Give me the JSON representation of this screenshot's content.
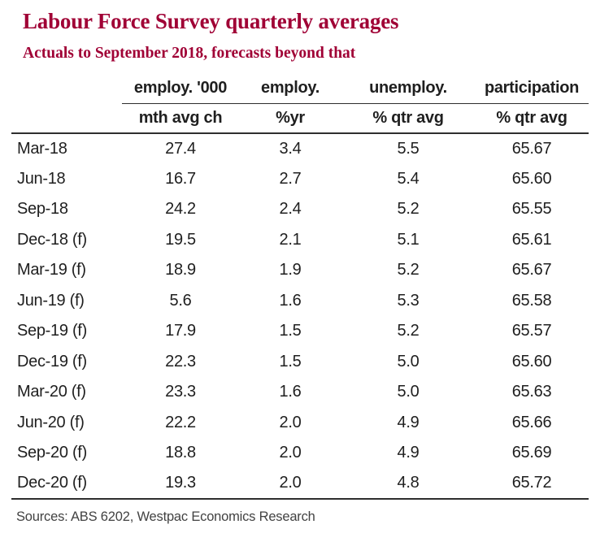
{
  "title": "Labour Force Survey quarterly averages",
  "subtitle": "Actuals to September 2018, forecasts beyond that",
  "colors": {
    "accent": "#a00035",
    "text": "#1f1f1f",
    "muted": "#424242",
    "rule": "#2e2e2e",
    "background": "#ffffff"
  },
  "table": {
    "columns": [
      {
        "header": "",
        "subheader": ""
      },
      {
        "header": "employ. '000",
        "subheader": "mth avg ch"
      },
      {
        "header": "employ.",
        "subheader": "%yr"
      },
      {
        "header": "unemploy.",
        "subheader": "% qtr avg"
      },
      {
        "header": "participation",
        "subheader": "% qtr avg"
      }
    ],
    "rows": [
      {
        "period": "Mar-18",
        "values": [
          "27.4",
          "3.4",
          "5.5",
          "65.67"
        ]
      },
      {
        "period": "Jun-18",
        "values": [
          "16.7",
          "2.7",
          "5.4",
          "65.60"
        ]
      },
      {
        "period": "Sep-18",
        "values": [
          "24.2",
          "2.4",
          "5.2",
          "65.55"
        ]
      },
      {
        "period": "Dec-18 (f)",
        "values": [
          "19.5",
          "2.1",
          "5.1",
          "65.61"
        ]
      },
      {
        "period": "Mar-19 (f)",
        "values": [
          "18.9",
          "1.9",
          "5.2",
          "65.67"
        ]
      },
      {
        "period": "Jun-19 (f)",
        "values": [
          "5.6",
          "1.6",
          "5.3",
          "65.58"
        ]
      },
      {
        "period": "Sep-19 (f)",
        "values": [
          "17.9",
          "1.5",
          "5.2",
          "65.57"
        ]
      },
      {
        "period": "Dec-19 (f)",
        "values": [
          "22.3",
          "1.5",
          "5.0",
          "65.60"
        ]
      },
      {
        "period": "Mar-20 (f)",
        "values": [
          "23.3",
          "1.6",
          "5.0",
          "65.63"
        ]
      },
      {
        "period": "Jun-20 (f)",
        "values": [
          "22.2",
          "2.0",
          "4.9",
          "65.66"
        ]
      },
      {
        "period": "Sep-20 (f)",
        "values": [
          "18.8",
          "2.0",
          "4.9",
          "65.69"
        ]
      },
      {
        "period": "Dec-20 (f)",
        "values": [
          "19.3",
          "2.0",
          "4.8",
          "65.72"
        ]
      }
    ]
  },
  "footer": {
    "sources": "Sources: ABS 6202, Westpac Economics Research"
  }
}
